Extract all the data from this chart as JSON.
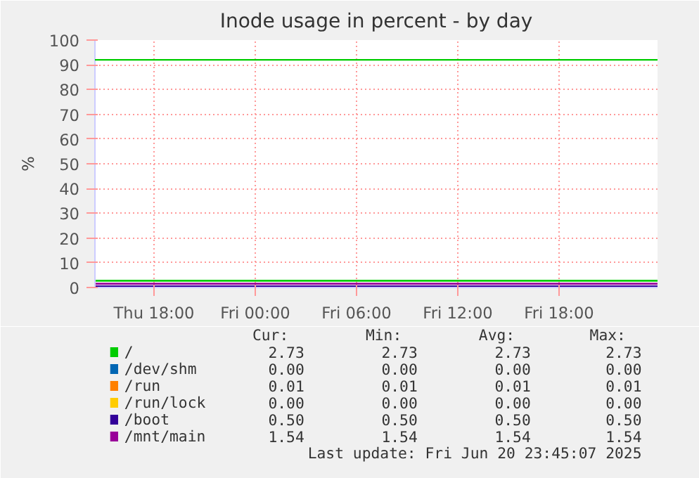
{
  "chart_data": {
    "type": "line",
    "title": "Inode usage in percent - by day",
    "ylabel": "%",
    "xlim": [
      "2025-06-19T14:30",
      "2025-06-20T23:50"
    ],
    "xticks": [
      {
        "value": "2025-06-19T18:00",
        "label": "Thu 18:00"
      },
      {
        "value": "2025-06-20T00:00",
        "label": "Fri 00:00"
      },
      {
        "value": "2025-06-20T06:00",
        "label": "Fri 06:00"
      },
      {
        "value": "2025-06-20T12:00",
        "label": "Fri 12:00"
      },
      {
        "value": "2025-06-20T18:00",
        "label": "Fri 18:00"
      }
    ],
    "ylim": [
      0,
      100
    ],
    "yticks": [
      0,
      10,
      20,
      30,
      40,
      50,
      60,
      70,
      80,
      90,
      100
    ],
    "grid": true,
    "legend": "bottom",
    "marker": "none",
    "line_style": "solid",
    "x": [
      "2025-06-19T14:30",
      "2025-06-20T23:50"
    ],
    "series": [
      {
        "name": "/",
        "color": "#00cc00",
        "values": [
          2.73,
          2.73
        ]
      },
      {
        "name": "/dev/shm",
        "color": "#0066b3",
        "values": [
          null,
          null
        ]
      },
      {
        "name": "/run",
        "color": "#ff8000",
        "values": [
          null,
          null
        ]
      },
      {
        "name": "/run/lock",
        "color": "#ffcc00",
        "values": [
          null,
          null
        ]
      },
      {
        "name": "/boot",
        "color": "#330099",
        "values": [
          0.5,
          0.5
        ]
      },
      {
        "name": "/mnt/main",
        "color": "#990099",
        "values": [
          1.54,
          1.54
        ]
      }
    ],
    "ref_lines": [
      {
        "axis": "y",
        "value": 92,
        "label": null,
        "color": "#00cc00"
      }
    ],
    "annotations": [
      "Cur:",
      "Min:",
      "Avg:",
      "Max:",
      "2.73",
      "2.73",
      "2.73",
      "2.73",
      "0.00",
      "0.00",
      "0.00",
      "0.00",
      "0.01",
      "0.01",
      "0.01",
      "0.01",
      "0.00",
      "0.00",
      "0.00",
      "0.00",
      "0.50",
      "0.50",
      "0.50",
      "0.50",
      "1.54",
      "1.54",
      "1.54",
      "1.54",
      "Last update: Fri Jun 20 23:45:07 2025"
    ]
  }
}
